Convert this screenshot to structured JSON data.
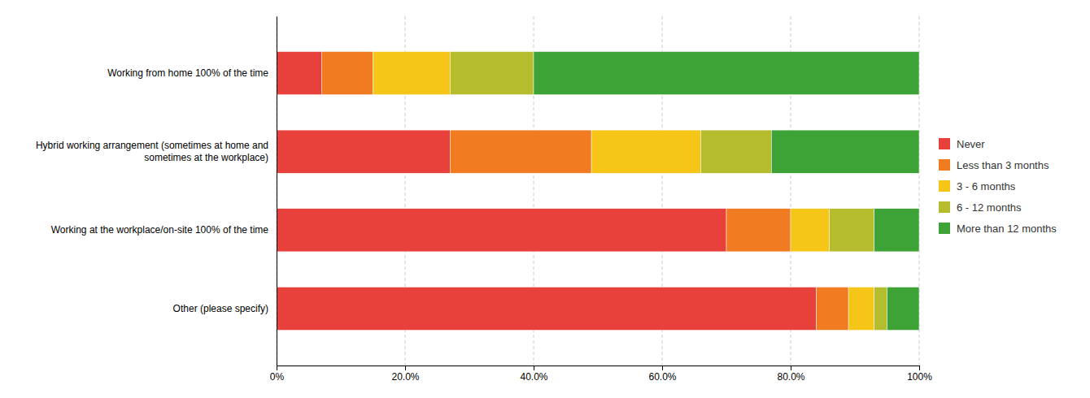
{
  "chart_data": {
    "type": "bar",
    "orientation": "horizontal",
    "stacked": true,
    "categories": [
      "Working from home 100% of the time",
      "Hybrid working arrangement (sometimes at home and\nsometimes at the workplace)",
      "Working at the workplace/on-site 100% of the time",
      "Other (please specify)"
    ],
    "series": [
      {
        "name": "Never",
        "color": "#e8403a",
        "values": [
          7,
          27,
          70,
          84
        ]
      },
      {
        "name": "Less than 3 months",
        "color": "#f07b20",
        "values": [
          8,
          22,
          10,
          5
        ]
      },
      {
        "name": "3 - 6 months",
        "color": "#f5c518",
        "values": [
          12,
          17,
          6,
          4
        ]
      },
      {
        "name": "6 - 12 months",
        "color": "#b5bd2e",
        "values": [
          13,
          11,
          7,
          2
        ]
      },
      {
        "name": "More than 12 months",
        "color": "#3ea336",
        "values": [
          60,
          23,
          7,
          5
        ]
      }
    ],
    "xlim": [
      0,
      100
    ],
    "xticks": [
      {
        "value": 0,
        "label": "0%"
      },
      {
        "value": 20,
        "label": "20.0%"
      },
      {
        "value": 40,
        "label": "40.0%"
      },
      {
        "value": 60,
        "label": "60.0%"
      },
      {
        "value": 80,
        "label": "80.0%"
      },
      {
        "value": 100,
        "label": "100%"
      }
    ],
    "grid": true,
    "legend": "right"
  }
}
